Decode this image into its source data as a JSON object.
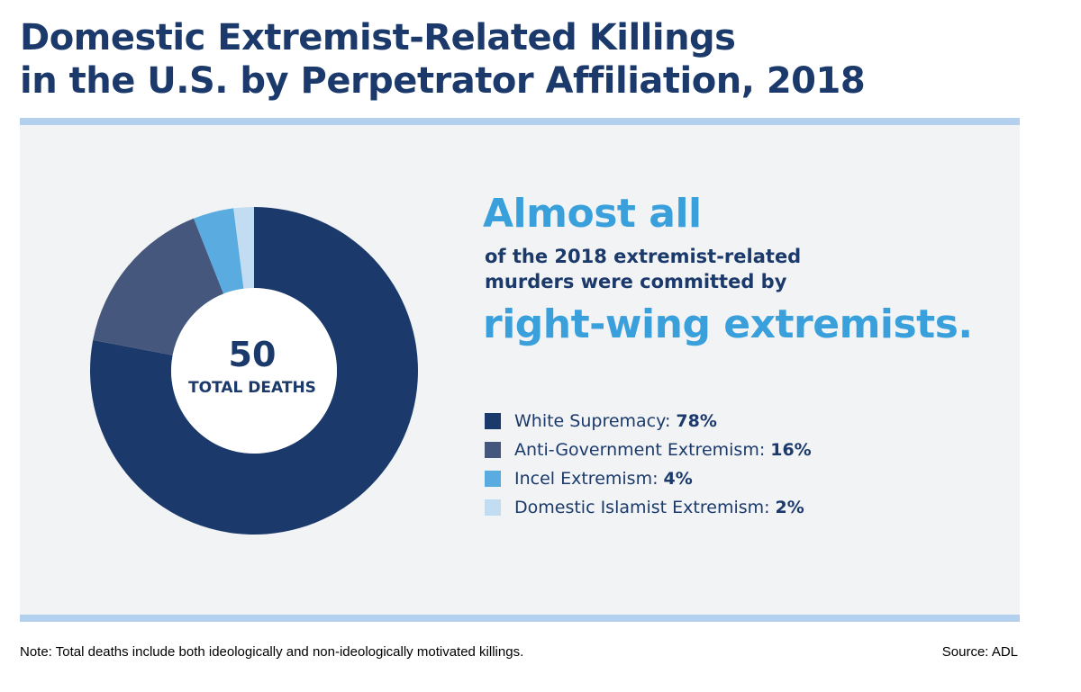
{
  "title": {
    "line1": "Domestic Extremist-Related Killings",
    "line2": "in the U.S. by Perpetrator Affiliation, 2018"
  },
  "center": {
    "value": "50",
    "label": "TOTAL DEATHS"
  },
  "headline": {
    "top": "Almost all",
    "sub": "of the 2018 extremist-related murders were committed by",
    "bottom": "right-wing extremists."
  },
  "chart_data": {
    "type": "pie",
    "donut": true,
    "categories": [
      "White Supremacy",
      "Anti-Government Extremism",
      "Incel Extremism",
      "Domestic Islamist Extremism"
    ],
    "values": [
      78,
      16,
      4,
      2
    ],
    "value_labels": [
      "78%",
      "16%",
      "4%",
      "2%"
    ],
    "colors": [
      "#1b3a6b",
      "#46577d",
      "#59abe0",
      "#c2dcf2"
    ],
    "legend_placement": "right"
  },
  "footer": {
    "note": "Note: Total deaths include both ideologically and non-ideologically motivated killings.",
    "source": "Source: ADL"
  }
}
